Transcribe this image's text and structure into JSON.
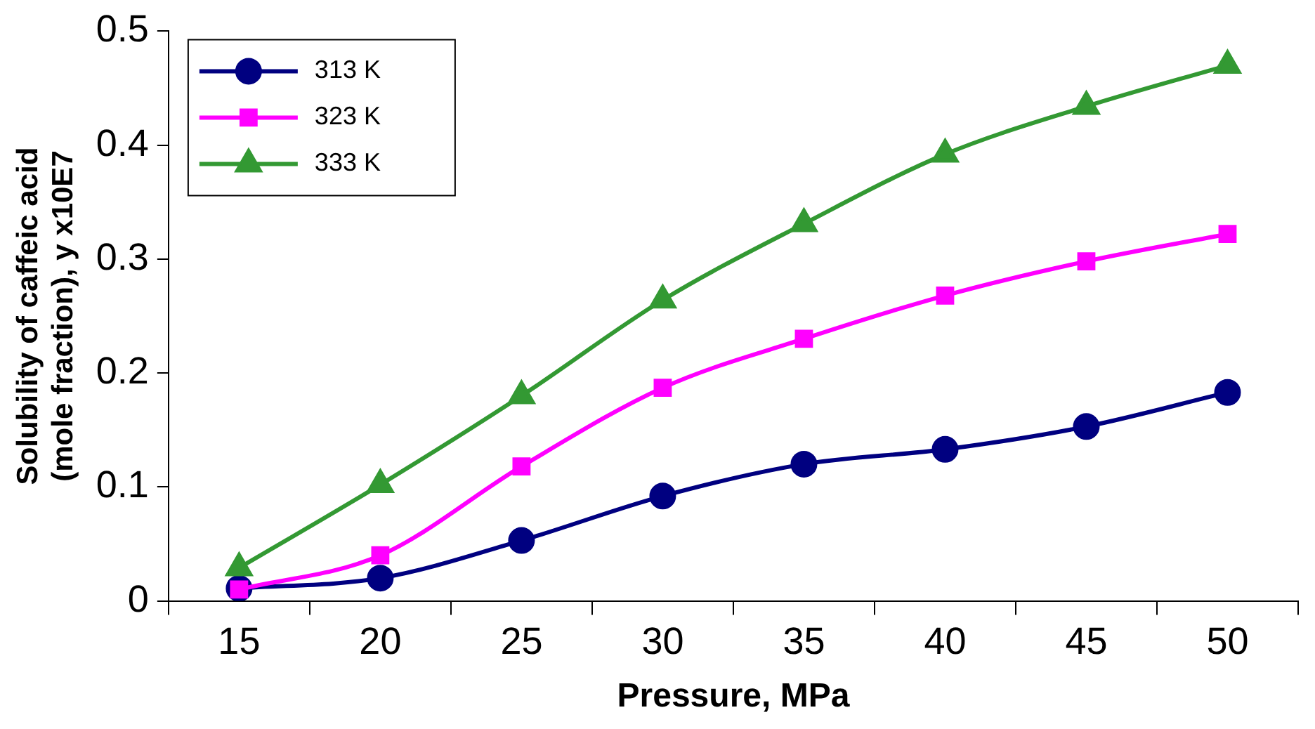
{
  "chart_data": {
    "type": "line",
    "xlabel": "Pressure, MPa",
    "ylabel": "Solubility of caffeic acid (mole fraction), y x10E7",
    "categories": [
      "15",
      "20",
      "25",
      "30",
      "35",
      "40",
      "45",
      "50"
    ],
    "ylim": [
      0,
      0.5
    ],
    "yticks": [
      0,
      0.1,
      0.2,
      0.3,
      0.4,
      0.5
    ],
    "grid": false,
    "legend": "top left",
    "series": [
      {
        "name": "313 K",
        "color": "#000080",
        "marker": "circle",
        "values": [
          0.011,
          0.02,
          0.053,
          0.092,
          0.12,
          0.133,
          0.153,
          0.183
        ]
      },
      {
        "name": "323 K",
        "color": "#ff00ff",
        "marker": "square",
        "values": [
          0.01,
          0.04,
          0.118,
          0.187,
          0.23,
          0.268,
          0.298,
          0.322
        ]
      },
      {
        "name": "333 K",
        "color": "#339933",
        "marker": "triangle",
        "values": [
          0.029,
          0.102,
          0.18,
          0.264,
          0.331,
          0.392,
          0.434,
          0.47
        ]
      }
    ]
  }
}
